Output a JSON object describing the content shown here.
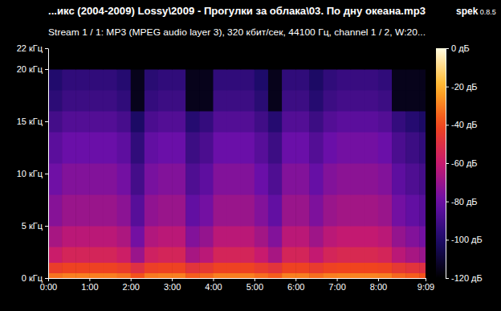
{
  "chart_data": {
    "type": "heatmap",
    "title": "...икс (2004-2009) Lossy\\2009 - Прогулки за облака\\03. По дну океана.mp3",
    "subtitle": "Stream 1 / 1: MP3 (MPEG audio layer 3), 320 кбит/сек, 44100 Гц, channel 1 / 2, W:20...",
    "annotations": [
      "spek 0.8.5"
    ],
    "xlim": [
      0,
      549
    ],
    "xticks": [
      {
        "value": 0,
        "label": "0:00"
      },
      {
        "value": 60,
        "label": "1:00"
      },
      {
        "value": 120,
        "label": "2:00"
      },
      {
        "value": 180,
        "label": "3:00"
      },
      {
        "value": 240,
        "label": "4:00"
      },
      {
        "value": 300,
        "label": "5:00"
      },
      {
        "value": 360,
        "label": "6:00"
      },
      {
        "value": 420,
        "label": "7:00"
      },
      {
        "value": 480,
        "label": "8:00"
      },
      {
        "value": 549,
        "label": "9:09"
      }
    ],
    "ylim": [
      0,
      22
    ],
    "yticks": [
      {
        "value": 0,
        "label": "0 кГц"
      },
      {
        "value": 5,
        "label": "5 кГц"
      },
      {
        "value": 10,
        "label": "10 кГц"
      },
      {
        "value": 15,
        "label": "15 кГц"
      },
      {
        "value": 20,
        "label": "20 кГц"
      },
      {
        "value": 22,
        "label": "22 кГц"
      }
    ],
    "x_bins": [
      0,
      20,
      40,
      60,
      80,
      100,
      120,
      140,
      160,
      180,
      200,
      220,
      240,
      260,
      280,
      300,
      320,
      340,
      360,
      380,
      400,
      420,
      440,
      460,
      480,
      500,
      520,
      540,
      549
    ],
    "y_bins": [
      0,
      0.5,
      1.5,
      3,
      5,
      8,
      11,
      14,
      16,
      18,
      20,
      22
    ],
    "values": [
      [
        -32,
        -30,
        -30,
        -30,
        -30,
        -32,
        -38,
        -31,
        -30,
        -30,
        -36,
        -34,
        -30,
        -30,
        -30,
        -33,
        -36,
        -30,
        -30,
        -33,
        -30,
        -29,
        -29,
        -29,
        -30,
        -34,
        -36,
        -38
      ],
      [
        -44,
        -42,
        -42,
        -42,
        -42,
        -44,
        -50,
        -43,
        -42,
        -42,
        -48,
        -46,
        -42,
        -42,
        -42,
        -45,
        -48,
        -42,
        -42,
        -45,
        -42,
        -41,
        -41,
        -41,
        -42,
        -46,
        -48,
        -50
      ],
      [
        -59,
        -55,
        -55,
        -55,
        -55,
        -58,
        -70,
        -57,
        -55,
        -55,
        -67,
        -63,
        -55,
        -55,
        -55,
        -60,
        -67,
        -55,
        -55,
        -61,
        -55,
        -53,
        -53,
        -53,
        -55,
        -63,
        -67,
        -70
      ],
      [
        -67,
        -63,
        -63,
        -63,
        -63,
        -66,
        -78,
        -65,
        -63,
        -63,
        -75,
        -71,
        -63,
        -63,
        -63,
        -68,
        -75,
        -63,
        -63,
        -69,
        -63,
        -61,
        -61,
        -61,
        -63,
        -71,
        -75,
        -78
      ],
      [
        -74,
        -70,
        -70,
        -70,
        -70,
        -73,
        -85,
        -72,
        -70,
        -70,
        -82,
        -78,
        -70,
        -70,
        -70,
        -75,
        -82,
        -70,
        -70,
        -76,
        -70,
        -68,
        -68,
        -68,
        -70,
        -78,
        -82,
        -85
      ],
      [
        -79,
        -75,
        -75,
        -75,
        -75,
        -78,
        -90,
        -77,
        -75,
        -75,
        -87,
        -83,
        -75,
        -75,
        -75,
        -80,
        -87,
        -75,
        -75,
        -81,
        -75,
        -73,
        -73,
        -73,
        -75,
        -83,
        -87,
        -90
      ],
      [
        -84,
        -80,
        -80,
        -80,
        -80,
        -83,
        -95,
        -82,
        -80,
        -80,
        -92,
        -88,
        -80,
        -80,
        -80,
        -85,
        -92,
        -80,
        -80,
        -86,
        -80,
        -78,
        -78,
        -78,
        -80,
        -88,
        -92,
        -95
      ],
      [
        -90,
        -86,
        -86,
        -86,
        -86,
        -89,
        -101,
        -88,
        -86,
        -86,
        -98,
        -94,
        -86,
        -86,
        -86,
        -91,
        -98,
        -86,
        -86,
        -92,
        -86,
        -84,
        -84,
        -84,
        -86,
        -94,
        -98,
        -101
      ],
      [
        -96,
        -92,
        -92,
        -92,
        -92,
        -95,
        -115,
        -94,
        -92,
        -92,
        -115,
        -115,
        -92,
        -92,
        -92,
        -97,
        -115,
        -92,
        -92,
        -98,
        -92,
        -90,
        -90,
        -90,
        -92,
        -115,
        -115,
        -115
      ],
      [
        -99,
        -95,
        -95,
        -95,
        -95,
        -98,
        -115,
        -97,
        -95,
        -95,
        -115,
        -115,
        -95,
        -95,
        -95,
        -100,
        -115,
        -95,
        -95,
        -101,
        -95,
        -93,
        -93,
        -93,
        -95,
        -115,
        -115,
        -115
      ],
      [
        -120,
        -120,
        -120,
        -120,
        -120,
        -120,
        -120,
        -120,
        -120,
        -120,
        -120,
        -120,
        -120,
        -120,
        -120,
        -120,
        -120,
        -120,
        -120,
        -120,
        -120,
        -120,
        -120,
        -120,
        -120,
        -120,
        -120,
        -120
      ]
    ],
    "colorbar": {
      "range": [
        -120,
        0
      ],
      "ticks": [
        {
          "value": 0,
          "label": "0 дБ"
        },
        {
          "value": -20,
          "label": "-20 дБ"
        },
        {
          "value": -40,
          "label": "-40 дБ"
        },
        {
          "value": -60,
          "label": "-60 дБ"
        },
        {
          "value": -80,
          "label": "-80 дБ"
        },
        {
          "value": -100,
          "label": "-100 дБ"
        },
        {
          "value": -120,
          "label": "-120 дБ"
        }
      ]
    }
  }
}
